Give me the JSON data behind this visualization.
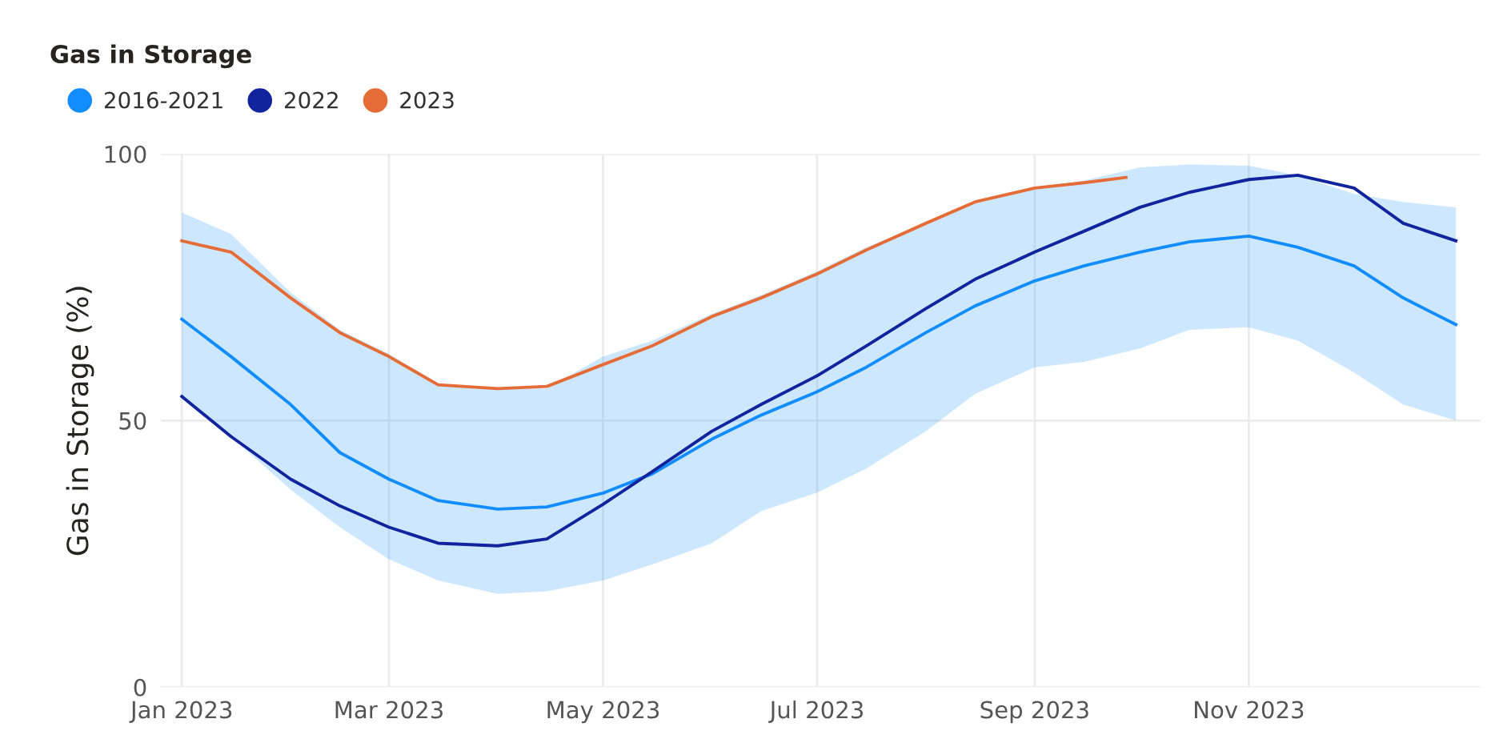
{
  "chart_data": {
    "type": "line",
    "title": "Gas in Storage",
    "ylabel": "Gas in Storage (%)",
    "x": [
      "2023-01-01",
      "2023-01-15",
      "2023-02-01",
      "2023-02-15",
      "2023-03-01",
      "2023-03-15",
      "2023-04-01",
      "2023-04-15",
      "2023-05-01",
      "2023-05-15",
      "2023-06-01",
      "2023-06-15",
      "2023-07-01",
      "2023-07-15",
      "2023-08-01",
      "2023-08-15",
      "2023-09-01",
      "2023-09-15",
      "2023-10-01",
      "2023-10-15",
      "2023-11-01",
      "2023-11-15",
      "2023-12-01",
      "2023-12-15",
      "2023-12-30"
    ],
    "series": [
      {
        "name": "2016-2021",
        "color": "#118dff",
        "values": [
          69.0,
          62,
          53,
          44,
          39,
          35,
          33.4,
          33.8,
          36.4,
          40,
          46.5,
          51,
          55.4,
          60,
          66.5,
          71.5,
          76.2,
          79,
          81.6,
          83.5,
          84.6,
          82.5,
          79,
          73,
          68
        ],
        "lower": [
          54.5,
          47,
          37,
          30,
          24,
          20,
          17.5,
          18,
          20,
          23,
          27,
          33,
          36.5,
          41,
          48,
          55,
          60,
          61,
          63.5,
          67,
          67.5,
          65,
          59,
          53,
          50
        ],
        "upper": [
          89,
          85,
          74,
          67,
          62.5,
          57,
          56,
          56,
          62,
          65,
          70,
          73.5,
          78,
          82.5,
          87,
          91,
          93.5,
          95,
          97.5,
          98,
          97.8,
          96,
          92.5,
          91,
          90
        ]
      },
      {
        "name": "2022",
        "color": "#12239e",
        "values": [
          54.5,
          47,
          39,
          34,
          30,
          27,
          26.5,
          27.8,
          34.3,
          40.4,
          48,
          53,
          58.4,
          64,
          71,
          76.5,
          81.6,
          85.5,
          90,
          92.8,
          95.2,
          96,
          93.6,
          87,
          83.7
        ]
      },
      {
        "name": "2023",
        "color": "#e66c37",
        "x": [
          "2023-01-01",
          "2023-01-15",
          "2023-02-01",
          "2023-02-15",
          "2023-03-01",
          "2023-03-15",
          "2023-04-01",
          "2023-04-15",
          "2023-05-01",
          "2023-05-15",
          "2023-06-01",
          "2023-06-15",
          "2023-07-01",
          "2023-07-15",
          "2023-08-01",
          "2023-08-15",
          "2023-09-01",
          "2023-09-15",
          "2023-09-27"
        ],
        "values": [
          83.7,
          81.6,
          73,
          66.5,
          62,
          56.7,
          56,
          56.4,
          60.5,
          64,
          69.5,
          73,
          77.5,
          82,
          87,
          91,
          93.6,
          94.6,
          95.6
        ]
      }
    ],
    "xlim": [
      "2022-12-26",
      "2024-01-06"
    ],
    "xticks": [
      {
        "value": "2023-01-01",
        "label": "Jan 2023"
      },
      {
        "value": "2023-03-01",
        "label": "Mar 2023"
      },
      {
        "value": "2023-05-01",
        "label": "May 2023"
      },
      {
        "value": "2023-07-01",
        "label": "Jul 2023"
      },
      {
        "value": "2023-09-01",
        "label": "Sep 2023"
      },
      {
        "value": "2023-11-01",
        "label": "Nov 2023"
      }
    ],
    "ylim": [
      0,
      100
    ],
    "yticks": [
      0,
      50,
      100
    ],
    "grid": true,
    "legend": "top left",
    "marker": "none",
    "line_style": "solid"
  }
}
